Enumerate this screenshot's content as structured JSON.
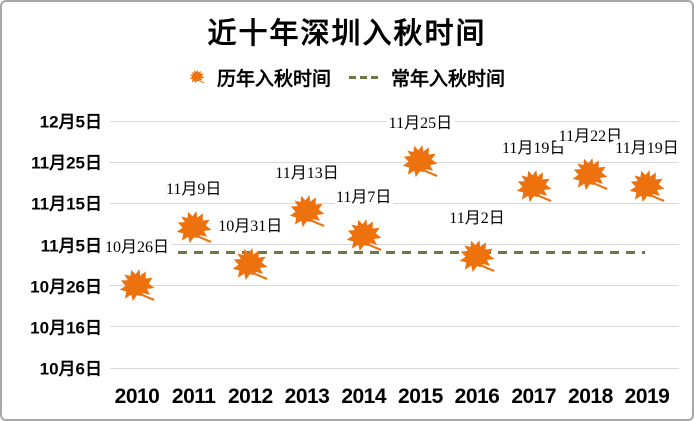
{
  "title": "近十年深圳入秋时间",
  "legend": {
    "series": [
      {
        "label": "历年入秋时间",
        "marker": "maple-leaf"
      },
      {
        "label": "常年入秋时间",
        "marker": "dashed-line"
      }
    ]
  },
  "colors": {
    "leaf": "#ED720E",
    "baseline": "#6E7846",
    "gridline": "#D9D9D9",
    "text": "#000000"
  },
  "chart_data": {
    "type": "scatter",
    "title": "近十年深圳入秋时间",
    "x_categories": [
      "2010",
      "2011",
      "2012",
      "2013",
      "2014",
      "2015",
      "2016",
      "2017",
      "2018",
      "2019"
    ],
    "points": [
      {
        "year": "2010",
        "label": "10月26日",
        "month": 10,
        "day": 26
      },
      {
        "year": "2011",
        "label": "11月9日",
        "month": 11,
        "day": 9
      },
      {
        "year": "2012",
        "label": "10月31日",
        "month": 10,
        "day": 31
      },
      {
        "year": "2013",
        "label": "11月13日",
        "month": 11,
        "day": 13
      },
      {
        "year": "2014",
        "label": "11月7日",
        "month": 11,
        "day": 7
      },
      {
        "year": "2015",
        "label": "11月25日",
        "month": 11,
        "day": 25
      },
      {
        "year": "2016",
        "label": "11月2日",
        "month": 11,
        "day": 2
      },
      {
        "year": "2017",
        "label": "11月19日",
        "month": 11,
        "day": 19
      },
      {
        "year": "2018",
        "label": "11月22日",
        "month": 11,
        "day": 22
      },
      {
        "year": "2019",
        "label": "11月19日",
        "month": 11,
        "day": 19
      }
    ],
    "y_ticks": [
      {
        "label": "12月5日",
        "month": 12,
        "day": 5
      },
      {
        "label": "11月25日",
        "month": 11,
        "day": 25
      },
      {
        "label": "11月15日",
        "month": 11,
        "day": 15
      },
      {
        "label": "11月5日",
        "month": 11,
        "day": 5
      },
      {
        "label": "10月26日",
        "month": 10,
        "day": 26
      },
      {
        "label": "10月16日",
        "month": 10,
        "day": 16
      },
      {
        "label": "10月6日",
        "month": 10,
        "day": 6
      }
    ],
    "baseline": {
      "name": "常年入秋时间",
      "estimated_date": "11月3日",
      "month": 11,
      "day": 3
    },
    "y_axis_range": [
      "10月6日",
      "12月5日"
    ],
    "legend_position": "top",
    "grid": true
  }
}
